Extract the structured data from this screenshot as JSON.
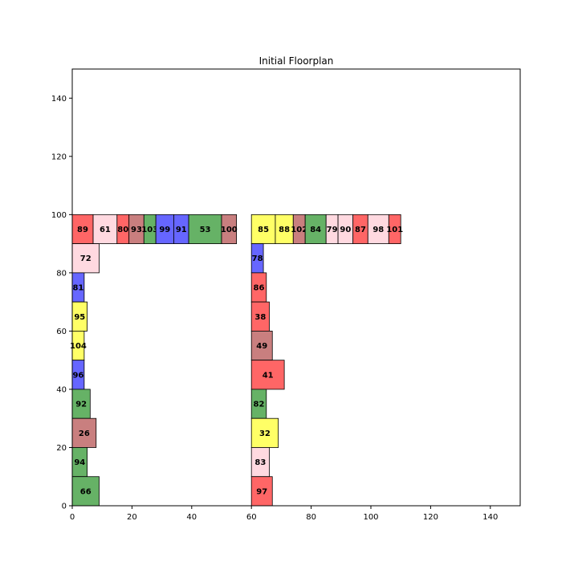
{
  "chart_data": {
    "type": "floorplan",
    "title": "Initial Floorplan",
    "xlabel": "",
    "ylabel": "",
    "xlim": [
      0,
      150
    ],
    "ylim": [
      0,
      150
    ],
    "xticks": [
      0,
      20,
      40,
      60,
      80,
      100,
      120,
      140
    ],
    "yticks": [
      0,
      20,
      40,
      60,
      80,
      100,
      120,
      140
    ],
    "grid": false,
    "colors": {
      "red": "#ff6666",
      "pink": "#ffd9e0",
      "brown": "#c97f7f",
      "green": "#66b266",
      "blue": "#6666ff",
      "yellow": "#ffff66"
    },
    "rooms": [
      {
        "label": "89",
        "x": 0,
        "y": 90,
        "w": 7,
        "h": 10,
        "color": "red"
      },
      {
        "label": "61",
        "x": 7,
        "y": 90,
        "w": 8,
        "h": 10,
        "color": "pink"
      },
      {
        "label": "80",
        "x": 15,
        "y": 90,
        "w": 4,
        "h": 10,
        "color": "red"
      },
      {
        "label": "93",
        "x": 19,
        "y": 90,
        "w": 5,
        "h": 10,
        "color": "brown"
      },
      {
        "label": "103",
        "x": 24,
        "y": 90,
        "w": 4,
        "h": 10,
        "color": "green"
      },
      {
        "label": "99",
        "x": 28,
        "y": 90,
        "w": 6,
        "h": 10,
        "color": "blue"
      },
      {
        "label": "91",
        "x": 34,
        "y": 90,
        "w": 5,
        "h": 10,
        "color": "blue"
      },
      {
        "label": "53",
        "x": 39,
        "y": 90,
        "w": 11,
        "h": 10,
        "color": "green"
      },
      {
        "label": "100",
        "x": 50,
        "y": 90,
        "w": 5,
        "h": 10,
        "color": "brown"
      },
      {
        "label": "72",
        "x": 0,
        "y": 80,
        "w": 9,
        "h": 10,
        "color": "pink"
      },
      {
        "label": "81",
        "x": 0,
        "y": 70,
        "w": 4,
        "h": 10,
        "color": "blue"
      },
      {
        "label": "95",
        "x": 0,
        "y": 60,
        "w": 5,
        "h": 10,
        "color": "yellow"
      },
      {
        "label": "104",
        "x": 0,
        "y": 50,
        "w": 4,
        "h": 10,
        "color": "yellow"
      },
      {
        "label": "96",
        "x": 0,
        "y": 40,
        "w": 4,
        "h": 10,
        "color": "blue"
      },
      {
        "label": "92",
        "x": 0,
        "y": 30,
        "w": 6,
        "h": 10,
        "color": "green"
      },
      {
        "label": "26",
        "x": 0,
        "y": 20,
        "w": 8,
        "h": 10,
        "color": "brown"
      },
      {
        "label": "94",
        "x": 0,
        "y": 10,
        "w": 5,
        "h": 10,
        "color": "green"
      },
      {
        "label": "66",
        "x": 0,
        "y": 0,
        "w": 9,
        "h": 10,
        "color": "green"
      },
      {
        "label": "85",
        "x": 60,
        "y": 90,
        "w": 8,
        "h": 10,
        "color": "yellow"
      },
      {
        "label": "88",
        "x": 68,
        "y": 90,
        "w": 6,
        "h": 10,
        "color": "yellow"
      },
      {
        "label": "102",
        "x": 74,
        "y": 90,
        "w": 4,
        "h": 10,
        "color": "brown"
      },
      {
        "label": "84",
        "x": 78,
        "y": 90,
        "w": 7,
        "h": 10,
        "color": "green"
      },
      {
        "label": "79",
        "x": 85,
        "y": 90,
        "w": 4,
        "h": 10,
        "color": "pink"
      },
      {
        "label": "90",
        "x": 89,
        "y": 90,
        "w": 5,
        "h": 10,
        "color": "pink"
      },
      {
        "label": "87",
        "x": 94,
        "y": 90,
        "w": 5,
        "h": 10,
        "color": "red"
      },
      {
        "label": "98",
        "x": 99,
        "y": 90,
        "w": 7,
        "h": 10,
        "color": "pink"
      },
      {
        "label": "101",
        "x": 106,
        "y": 90,
        "w": 4,
        "h": 10,
        "color": "red"
      },
      {
        "label": "78",
        "x": 60,
        "y": 80,
        "w": 4,
        "h": 10,
        "color": "blue"
      },
      {
        "label": "86",
        "x": 60,
        "y": 70,
        "w": 5,
        "h": 10,
        "color": "red"
      },
      {
        "label": "38",
        "x": 60,
        "y": 60,
        "w": 6,
        "h": 10,
        "color": "red"
      },
      {
        "label": "49",
        "x": 60,
        "y": 50,
        "w": 7,
        "h": 10,
        "color": "brown"
      },
      {
        "label": "41",
        "x": 60,
        "y": 40,
        "w": 11,
        "h": 10,
        "color": "red"
      },
      {
        "label": "82",
        "x": 60,
        "y": 30,
        "w": 5,
        "h": 10,
        "color": "green"
      },
      {
        "label": "32",
        "x": 60,
        "y": 20,
        "w": 9,
        "h": 10,
        "color": "yellow"
      },
      {
        "label": "83",
        "x": 60,
        "y": 10,
        "w": 6,
        "h": 10,
        "color": "pink"
      },
      {
        "label": "97",
        "x": 60,
        "y": 0,
        "w": 7,
        "h": 10,
        "color": "red"
      }
    ]
  }
}
